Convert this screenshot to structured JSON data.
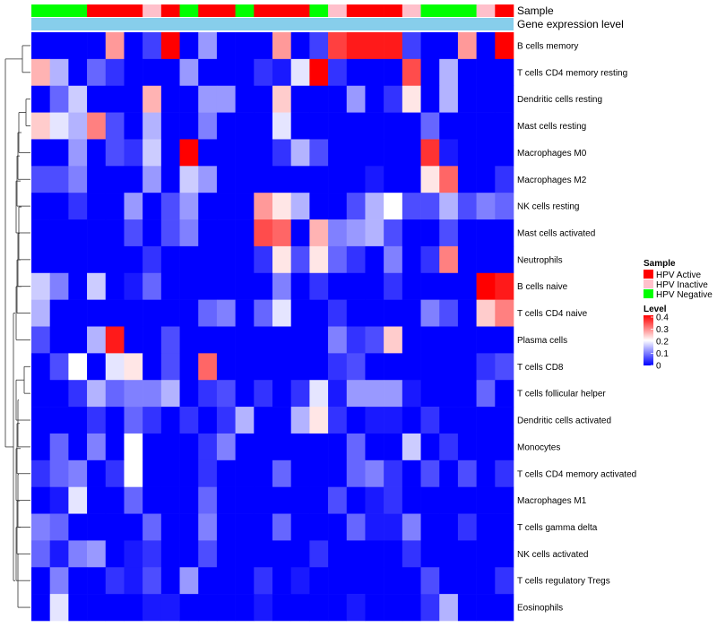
{
  "chart_data": {
    "type": "heatmap",
    "title": "",
    "rows": [
      "B cells memory",
      "T cells CD4 memory resting",
      "Dendritic cells resting",
      "Mast cells resting",
      "Macrophages M0",
      "Macrophages M2",
      "NK cells resting",
      "Mast cells activated",
      "Neutrophils",
      "B cells naive",
      "T cells CD4 naive",
      "Plasma cells",
      "T cells CD8",
      "T cells follicular helper",
      "Dendritic cells activated",
      "Monocytes",
      "T cells CD4 memory activated",
      "Macrophages M1",
      "T cells gamma delta",
      "NK cells activated",
      "T cells regulatory  Tregs",
      "Eosinophils"
    ],
    "sample_annotation": {
      "label": "Sample",
      "values": [
        "HPV Negative",
        "HPV Negative",
        "HPV Negative",
        "HPV Active",
        "HPV Active",
        "HPV Active",
        "HPV Inactive",
        "HPV Active",
        "HPV Negative",
        "HPV Active",
        "HPV Active",
        "HPV Negative",
        "HPV Active",
        "HPV Active",
        "HPV Active",
        "HPV Negative",
        "HPV Inactive",
        "HPV Active",
        "HPV Active",
        "HPV Active",
        "HPV Inactive",
        "HPV Negative",
        "HPV Negative",
        "HPV Negative",
        "HPV Inactive",
        "HPV Active"
      ]
    },
    "expression_annotation": {
      "label": "Gene expression level",
      "color": "#87CEEB"
    },
    "sample_legend": {
      "title": "Sample",
      "items": [
        {
          "label": "HPV Active",
          "color": "#ff0000"
        },
        {
          "label": "HPV Inactive",
          "color": "#ffc0cb"
        },
        {
          "label": "HPV Negative",
          "color": "#00ff00"
        }
      ]
    },
    "level_legend": {
      "title": "Level",
      "ticks": [
        "0.4",
        "0.3",
        "0.2",
        "0.1",
        "0"
      ],
      "range": [
        0,
        0.4
      ],
      "colors": [
        "#0000ff",
        "#ffffff",
        "#ff0000"
      ]
    },
    "values": [
      [
        0.0,
        0.0,
        0.0,
        0.0,
        0.28,
        0.0,
        0.05,
        0.4,
        0.0,
        0.12,
        0.0,
        0.0,
        0.0,
        0.28,
        0.0,
        0.05,
        0.35,
        0.38,
        0.38,
        0.38,
        0.05,
        0.0,
        0.0,
        0.28,
        0.0,
        0.4
      ],
      [
        0.26,
        0.14,
        0.0,
        0.08,
        0.04,
        0.0,
        0.0,
        0.0,
        0.12,
        0.0,
        0.0,
        0.0,
        0.04,
        0.02,
        0.18,
        0.4,
        0.04,
        0.0,
        0.0,
        0.0,
        0.34,
        0.0,
        0.14,
        0.0,
        0.0,
        0.0
      ],
      [
        0.0,
        0.08,
        0.16,
        0.0,
        0.0,
        0.0,
        0.26,
        0.0,
        0.0,
        0.12,
        0.12,
        0.0,
        0.0,
        0.24,
        0.0,
        0.0,
        0.0,
        0.12,
        0.0,
        0.04,
        0.22,
        0.0,
        0.14,
        0.0,
        0.0,
        0.0
      ],
      [
        0.24,
        0.18,
        0.14,
        0.3,
        0.06,
        0.0,
        0.14,
        0.0,
        0.0,
        0.1,
        0.0,
        0.0,
        0.0,
        0.18,
        0.0,
        0.0,
        0.0,
        0.0,
        0.0,
        0.0,
        0.0,
        0.08,
        0.0,
        0.0,
        0.0,
        0.0
      ],
      [
        0.0,
        0.0,
        0.12,
        0.0,
        0.06,
        0.04,
        0.16,
        0.0,
        0.4,
        0.0,
        0.0,
        0.0,
        0.0,
        0.04,
        0.14,
        0.06,
        0.0,
        0.0,
        0.0,
        0.0,
        0.0,
        0.36,
        0.02,
        0.0,
        0.0,
        0.0
      ],
      [
        0.06,
        0.06,
        0.1,
        0.0,
        0.0,
        0.0,
        0.12,
        0.0,
        0.16,
        0.12,
        0.0,
        0.0,
        0.0,
        0.0,
        0.0,
        0.0,
        0.0,
        0.0,
        0.02,
        0.0,
        0.0,
        0.22,
        0.32,
        0.0,
        0.0,
        0.04
      ],
      [
        0.0,
        0.0,
        0.04,
        0.0,
        0.0,
        0.12,
        0.0,
        0.06,
        0.12,
        0.0,
        0.0,
        0.0,
        0.28,
        0.22,
        0.14,
        0.0,
        0.0,
        0.06,
        0.14,
        0.2,
        0.06,
        0.06,
        0.14,
        0.06,
        0.1,
        0.08
      ],
      [
        0.0,
        0.0,
        0.0,
        0.0,
        0.0,
        0.06,
        0.0,
        0.06,
        0.1,
        0.0,
        0.0,
        0.0,
        0.34,
        0.32,
        0.0,
        0.26,
        0.1,
        0.12,
        0.14,
        0.06,
        0.0,
        0.0,
        0.06,
        0.0,
        0.0,
        0.0
      ],
      [
        0.0,
        0.0,
        0.0,
        0.0,
        0.0,
        0.0,
        0.04,
        0.0,
        0.0,
        0.0,
        0.0,
        0.0,
        0.04,
        0.22,
        0.06,
        0.22,
        0.08,
        0.04,
        0.0,
        0.1,
        0.0,
        0.04,
        0.3,
        0.0,
        0.0,
        0.0
      ],
      [
        0.16,
        0.1,
        0.0,
        0.16,
        0.0,
        0.02,
        0.08,
        0.0,
        0.0,
        0.0,
        0.0,
        0.0,
        0.0,
        0.1,
        0.0,
        0.04,
        0.0,
        0.0,
        0.0,
        0.04,
        0.0,
        0.0,
        0.0,
        0.0,
        0.4,
        0.38
      ],
      [
        0.14,
        0.0,
        0.0,
        0.0,
        0.0,
        0.0,
        0.0,
        0.0,
        0.0,
        0.08,
        0.1,
        0.0,
        0.08,
        0.18,
        0.0,
        0.0,
        0.04,
        0.0,
        0.0,
        0.0,
        0.0,
        0.1,
        0.06,
        0.0,
        0.24,
        0.3
      ],
      [
        0.06,
        0.0,
        0.0,
        0.14,
        0.38,
        0.0,
        0.0,
        0.06,
        0.0,
        0.0,
        0.0,
        0.0,
        0.0,
        0.0,
        0.0,
        0.0,
        0.1,
        0.04,
        0.06,
        0.24,
        0.0,
        0.0,
        0.0,
        0.0,
        0.0,
        0.0
      ],
      [
        0.0,
        0.06,
        0.2,
        0.0,
        0.18,
        0.22,
        0.0,
        0.06,
        0.0,
        0.32,
        0.0,
        0.0,
        0.0,
        0.0,
        0.0,
        0.0,
        0.04,
        0.06,
        0.0,
        0.0,
        0.0,
        0.0,
        0.0,
        0.0,
        0.04,
        0.06
      ],
      [
        0.0,
        0.0,
        0.04,
        0.14,
        0.08,
        0.1,
        0.1,
        0.14,
        0.0,
        0.04,
        0.06,
        0.0,
        0.04,
        0.0,
        0.04,
        0.18,
        0.02,
        0.12,
        0.12,
        0.12,
        0.02,
        0.0,
        0.0,
        0.0,
        0.08,
        0.0
      ],
      [
        0.0,
        0.0,
        0.0,
        0.04,
        0.0,
        0.08,
        0.04,
        0.0,
        0.04,
        0.0,
        0.04,
        0.14,
        0.0,
        0.0,
        0.14,
        0.22,
        0.04,
        0.0,
        0.02,
        0.02,
        0.0,
        0.04,
        0.0,
        0.0,
        0.0,
        0.0
      ],
      [
        0.0,
        0.08,
        0.0,
        0.1,
        0.0,
        0.2,
        0.0,
        0.0,
        0.0,
        0.04,
        0.1,
        0.0,
        0.0,
        0.0,
        0.0,
        0.0,
        0.0,
        0.08,
        0.0,
        0.0,
        0.16,
        0.0,
        0.04,
        0.0,
        0.0,
        0.0
      ],
      [
        0.04,
        0.08,
        0.1,
        0.0,
        0.04,
        0.2,
        0.0,
        0.0,
        0.0,
        0.04,
        0.0,
        0.0,
        0.0,
        0.08,
        0.0,
        0.0,
        0.0,
        0.08,
        0.1,
        0.04,
        0.0,
        0.06,
        0.0,
        0.06,
        0.0,
        0.04
      ],
      [
        0.0,
        0.02,
        0.18,
        0.0,
        0.0,
        0.08,
        0.0,
        0.0,
        0.0,
        0.08,
        0.0,
        0.0,
        0.0,
        0.0,
        0.0,
        0.0,
        0.06,
        0.0,
        0.02,
        0.04,
        0.0,
        0.0,
        0.0,
        0.0,
        0.0,
        0.0
      ],
      [
        0.1,
        0.08,
        0.0,
        0.0,
        0.0,
        0.0,
        0.08,
        0.0,
        0.0,
        0.1,
        0.0,
        0.0,
        0.0,
        0.08,
        0.0,
        0.0,
        0.0,
        0.08,
        0.02,
        0.02,
        0.1,
        0.0,
        0.0,
        0.04,
        0.0,
        0.0
      ],
      [
        0.08,
        0.02,
        0.1,
        0.12,
        0.0,
        0.02,
        0.04,
        0.0,
        0.0,
        0.06,
        0.0,
        0.0,
        0.0,
        0.0,
        0.0,
        0.04,
        0.0,
        0.0,
        0.0,
        0.0,
        0.04,
        0.0,
        0.0,
        0.0,
        0.0,
        0.0
      ],
      [
        0.0,
        0.1,
        0.0,
        0.0,
        0.04,
        0.02,
        0.06,
        0.0,
        0.12,
        0.0,
        0.0,
        0.0,
        0.04,
        0.0,
        0.02,
        0.0,
        0.0,
        0.0,
        0.0,
        0.0,
        0.0,
        0.06,
        0.0,
        0.0,
        0.0,
        0.04
      ],
      [
        0.0,
        0.18,
        0.0,
        0.0,
        0.0,
        0.0,
        0.02,
        0.02,
        0.0,
        0.0,
        0.0,
        0.0,
        0.02,
        0.0,
        0.0,
        0.0,
        0.0,
        0.02,
        0.0,
        0.0,
        0.0,
        0.04,
        0.14,
        0.0,
        0.0,
        0.0
      ]
    ]
  }
}
